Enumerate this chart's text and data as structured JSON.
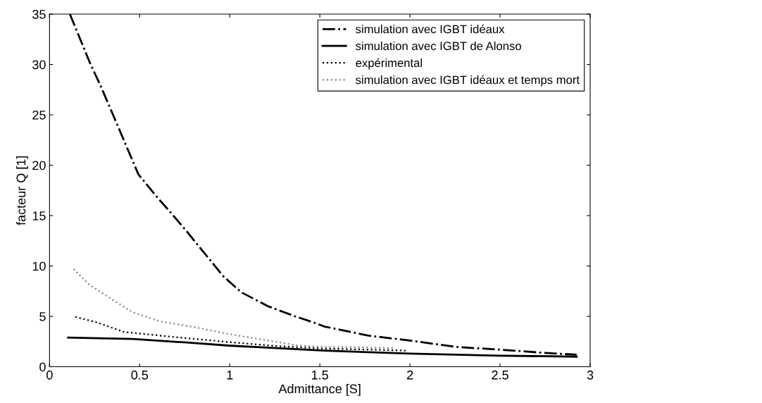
{
  "chart_data": {
    "type": "line",
    "xlabel": "Admittance [S]",
    "ylabel": "facteur Q [1]",
    "xlim": [
      0,
      3
    ],
    "ylim": [
      0,
      35
    ],
    "xticks": [
      0,
      0.5,
      1,
      1.5,
      2,
      2.5,
      3
    ],
    "yticks": [
      0,
      5,
      10,
      15,
      20,
      25,
      30,
      35
    ],
    "grid": false,
    "legend": "top right",
    "series": [
      {
        "name": "simulation avec IGBT idéaux",
        "color": "#000000",
        "line_style": "dashdot",
        "x": [
          0.113,
          0.228,
          0.283,
          0.393,
          0.493,
          0.603,
          0.663,
          0.763,
          0.963,
          1.063,
          1.213,
          1.363,
          1.465,
          1.523,
          1.765,
          2.0,
          2.265,
          2.5,
          2.765,
          2.925
        ],
        "values": [
          35,
          30,
          27.9,
          23.3,
          19.1,
          16.7,
          15.5,
          13.4,
          9.0,
          7.4,
          6.0,
          5.0,
          4.4,
          4.0,
          3.1,
          2.6,
          1.95,
          1.7,
          1.35,
          1.2
        ]
      },
      {
        "name": "simulation avec IGBT de Alonso",
        "color": "#000000",
        "line_style": "solid",
        "x": [
          0.103,
          0.463,
          0.763,
          0.993,
          1.263,
          1.523,
          2.0,
          2.5,
          2.925
        ],
        "values": [
          2.9,
          2.75,
          2.4,
          2.1,
          1.85,
          1.6,
          1.3,
          1.1,
          1.0
        ]
      },
      {
        "name": "expérimental",
        "color": "#000000",
        "line_style": "dotted",
        "x": [
          0.143,
          0.263,
          0.413,
          0.663,
          0.963,
          1.263,
          1.523,
          1.765,
          1.985
        ],
        "values": [
          4.95,
          4.4,
          3.45,
          3.0,
          2.5,
          2.05,
          1.8,
          1.7,
          1.6
        ]
      },
      {
        "name": "simulation avec IGBT idéaux et temps mort",
        "color": "#888888",
        "line_style": "dotted",
        "x": [
          0.133,
          0.223,
          0.363,
          0.463,
          0.613,
          0.813,
          0.993,
          1.163,
          1.363,
          1.523,
          1.665,
          1.915
        ],
        "values": [
          9.7,
          8.1,
          6.5,
          5.4,
          4.5,
          3.9,
          3.25,
          2.75,
          2.15,
          1.95,
          1.95,
          1.85
        ]
      }
    ]
  }
}
